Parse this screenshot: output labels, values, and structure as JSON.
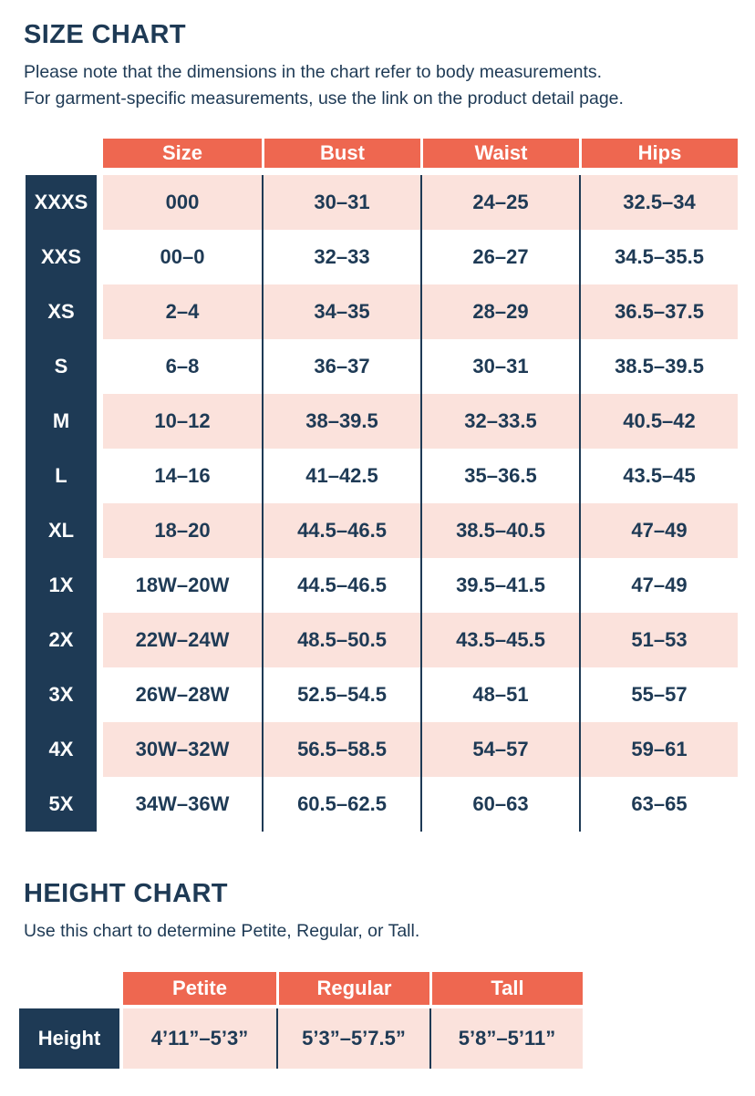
{
  "colors": {
    "navy": "#1e3a55",
    "orange": "#ee6750",
    "pink": "#fbe2dc",
    "white": "#ffffff"
  },
  "size_chart": {
    "title": "SIZE CHART",
    "note": "Please note that the dimensions in the chart refer to body measurements.\nFor garment-specific measurements, use the link on the product detail page.",
    "columns": [
      "Size",
      "Bust",
      "Waist",
      "Hips"
    ],
    "rows": [
      {
        "label": "XXXS",
        "size": "000",
        "bust": "30–31",
        "waist": "24–25",
        "hips": "32.5–34"
      },
      {
        "label": "XXS",
        "size": "00–0",
        "bust": "32–33",
        "waist": "26–27",
        "hips": "34.5–35.5"
      },
      {
        "label": "XS",
        "size": "2–4",
        "bust": "34–35",
        "waist": "28–29",
        "hips": "36.5–37.5"
      },
      {
        "label": "S",
        "size": "6–8",
        "bust": "36–37",
        "waist": "30–31",
        "hips": "38.5–39.5"
      },
      {
        "label": "M",
        "size": "10–12",
        "bust": "38–39.5",
        "waist": "32–33.5",
        "hips": "40.5–42"
      },
      {
        "label": "L",
        "size": "14–16",
        "bust": "41–42.5",
        "waist": "35–36.5",
        "hips": "43.5–45"
      },
      {
        "label": "XL",
        "size": "18–20",
        "bust": "44.5–46.5",
        "waist": "38.5–40.5",
        "hips": "47–49"
      },
      {
        "label": "1X",
        "size": "18W–20W",
        "bust": "44.5–46.5",
        "waist": "39.5–41.5",
        "hips": "47–49"
      },
      {
        "label": "2X",
        "size": "22W–24W",
        "bust": "48.5–50.5",
        "waist": "43.5–45.5",
        "hips": "51–53"
      },
      {
        "label": "3X",
        "size": "26W–28W",
        "bust": "52.5–54.5",
        "waist": "48–51",
        "hips": "55–57"
      },
      {
        "label": "4X",
        "size": "30W–32W",
        "bust": "56.5–58.5",
        "waist": "54–57",
        "hips": "59–61"
      },
      {
        "label": "5X",
        "size": "34W–36W",
        "bust": "60.5–62.5",
        "waist": "60–63",
        "hips": "63–65"
      }
    ]
  },
  "height_chart": {
    "title": "HEIGHT CHART",
    "note": "Use this chart to determine Petite, Regular, or Tall.",
    "columns": [
      "Petite",
      "Regular",
      "Tall"
    ],
    "row_label": "Height",
    "values": [
      "4’11”–5’3”",
      "5’3”–5’7.5”",
      "5’8”–5’11”"
    ]
  }
}
